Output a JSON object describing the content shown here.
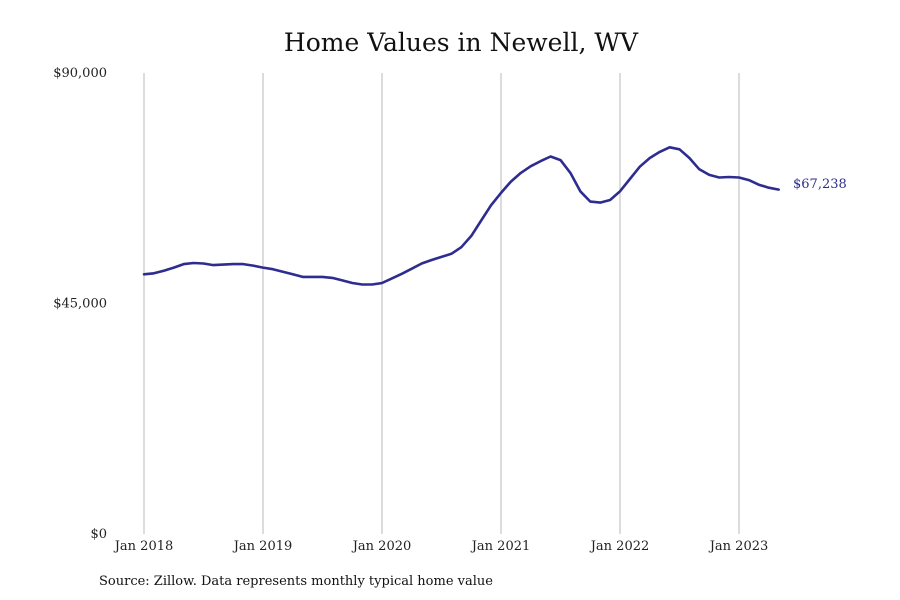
{
  "chart_data": {
    "type": "line",
    "title": "Home Values in Newell, WV",
    "xlabel": "",
    "ylabel": "",
    "ylim": [
      0,
      90000
    ],
    "y_ticks": [
      "$90,000",
      "$45,000",
      "$0"
    ],
    "y_tick_values": [
      90000,
      45000,
      0
    ],
    "x_ticks": [
      "Jan 2018",
      "Jan 2019",
      "Jan 2020",
      "Jan 2021",
      "Jan 2022",
      "Jan 2023"
    ],
    "x_tick_values": [
      "2018-01",
      "2019-01",
      "2020-01",
      "2021-01",
      "2022-01",
      "2023-01"
    ],
    "grid": "vertical lines at x ticks",
    "legend": "none",
    "line_color": "#2e2d8f",
    "grid_color": "#b8b8b8",
    "end_label": "$67,238",
    "source": "Source: Zillow. Data represents monthly typical home value",
    "x": [
      "2018-01",
      "2018-02",
      "2018-03",
      "2018-04",
      "2018-05",
      "2018-06",
      "2018-07",
      "2018-08",
      "2018-09",
      "2018-10",
      "2018-11",
      "2018-12",
      "2019-01",
      "2019-02",
      "2019-03",
      "2019-04",
      "2019-05",
      "2019-06",
      "2019-07",
      "2019-08",
      "2019-09",
      "2019-10",
      "2019-11",
      "2019-12",
      "2020-01",
      "2020-02",
      "2020-03",
      "2020-04",
      "2020-05",
      "2020-06",
      "2020-07",
      "2020-08",
      "2020-09",
      "2020-10",
      "2020-11",
      "2020-12",
      "2021-01",
      "2021-02",
      "2021-03",
      "2021-04",
      "2021-05",
      "2021-06",
      "2021-07",
      "2021-08",
      "2021-09",
      "2021-10",
      "2021-11",
      "2021-12",
      "2022-01",
      "2022-02",
      "2022-03",
      "2022-04",
      "2022-05",
      "2022-06",
      "2022-07",
      "2022-08",
      "2022-09",
      "2022-10",
      "2022-11",
      "2022-12",
      "2023-01",
      "2023-02",
      "2023-03",
      "2023-04",
      "2023-05"
    ],
    "series": [
      {
        "values": [
          50700,
          50900,
          51400,
          52000,
          52700,
          52900,
          52800,
          52500,
          52600,
          52700,
          52700,
          52400,
          52000,
          51700,
          51200,
          50700,
          50200,
          50200,
          50200,
          50000,
          49500,
          49000,
          48700,
          48700,
          49000,
          49900,
          50800,
          51800,
          52800,
          53500,
          54100,
          54700,
          56000,
          58200,
          61200,
          64200,
          66600,
          68800,
          70500,
          71800,
          72800,
          73700,
          73000,
          70500,
          66900,
          64900,
          64700,
          65200,
          66900,
          69300,
          71700,
          73400,
          74600,
          75500,
          75100,
          73400,
          71200,
          70100,
          69600,
          69700,
          69600,
          69100,
          68200,
          67600,
          67238
        ]
      }
    ]
  }
}
